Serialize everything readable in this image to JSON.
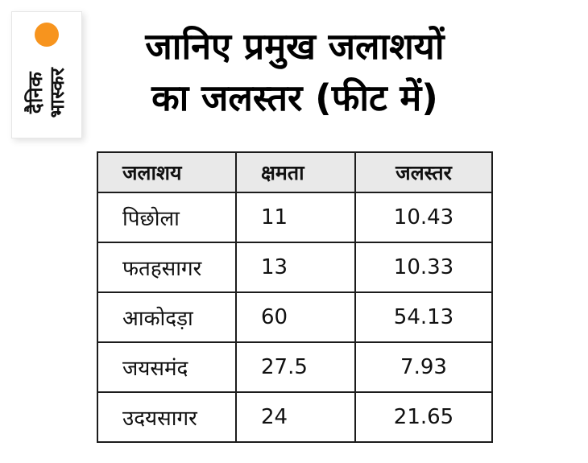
{
  "logo": {
    "text": "दैनिक\nभास्कर",
    "accent_color": "#f7941e"
  },
  "title": {
    "line1": "जानिए प्रमुख जलाशयों",
    "line2": "का जलस्तर (फीट में)"
  },
  "colors": {
    "accent_orange": "#f7941e",
    "header_gray": "#e9e9e9",
    "border": "#1c1c1c"
  },
  "chart_data": {
    "type": "table",
    "title": "जानिए प्रमुख जलाशयों का जलस्तर (फीट में)",
    "columns": [
      "जलाशय",
      "क्षमता",
      "जलस्तर"
    ],
    "rows": [
      [
        "पिछोला",
        "11",
        "10.43"
      ],
      [
        "फतहसागर",
        "13",
        "10.33"
      ],
      [
        "आकोदड़ा",
        "60",
        "54.13"
      ],
      [
        "जयसमंद",
        "27.5",
        "7.93"
      ],
      [
        "उदयसागर",
        "24",
        "21.65"
      ]
    ]
  }
}
